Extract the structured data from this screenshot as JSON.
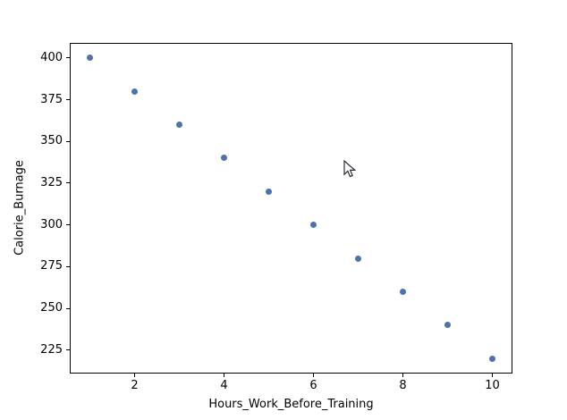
{
  "chart_data": {
    "type": "scatter",
    "title": "",
    "xlabel": "Hours_Work_Before_Training",
    "ylabel": "Calorie_Burnage",
    "x": [
      1,
      2,
      3,
      4,
      5,
      6,
      7,
      8,
      9,
      10
    ],
    "y": [
      400,
      380,
      360,
      340,
      320,
      300,
      280,
      260,
      240,
      220
    ],
    "xticks": [
      "2",
      "4",
      "6",
      "8",
      "10"
    ],
    "xtick_values": [
      2,
      4,
      6,
      8,
      10
    ],
    "yticks": [
      "225",
      "250",
      "275",
      "300",
      "325",
      "350",
      "375",
      "400"
    ],
    "ytick_values": [
      225,
      250,
      275,
      300,
      325,
      350,
      375,
      400
    ],
    "xlim": [
      0.55,
      10.45
    ],
    "ylim": [
      211,
      409
    ],
    "grid": false,
    "legend_position": "none",
    "marker_color": "#4C72B0",
    "spine_color": "#000000",
    "text_color": "#000000",
    "background_color": "#ffffff"
  },
  "cursor": {
    "type": "arrow-pointer",
    "tip_x": 385,
    "tip_y": 180
  }
}
